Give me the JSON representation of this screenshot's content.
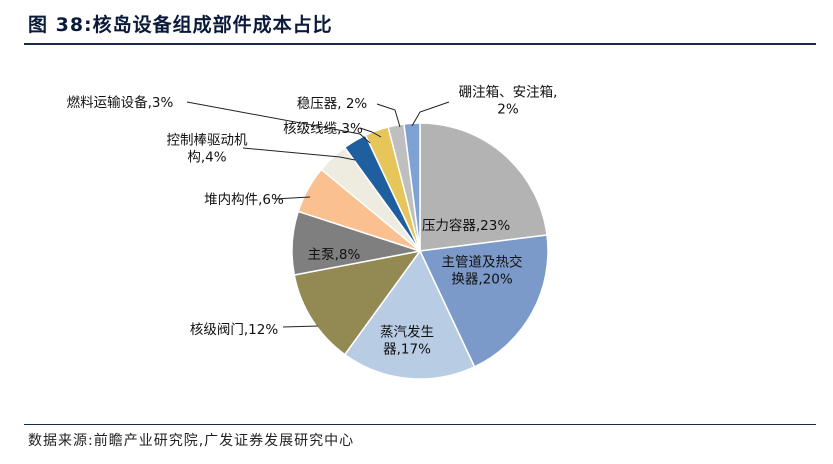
{
  "header": {
    "title": "图 38:核岛设备组成部件成本占比"
  },
  "footer": {
    "source": "数据来源:前瞻产业研究院,广发证券发展研究中心"
  },
  "chart_data": {
    "type": "pie",
    "title": "图 38:核岛设备组成部件成本占比",
    "unit": "%",
    "slices": [
      {
        "name": "压力容器",
        "value": 23,
        "label_lines": [
          "压力容器,23%"
        ],
        "color": "#b3b3b3"
      },
      {
        "name": "主管道及热交换器",
        "value": 20,
        "label_lines": [
          "主管道及热交",
          "换器,20%"
        ],
        "color": "#7b9ac9"
      },
      {
        "name": "蒸汽发生器",
        "value": 17,
        "label_lines": [
          "蒸汽发生",
          "器,17%"
        ],
        "color": "#b8cce4"
      },
      {
        "name": "核级阀门",
        "value": 12,
        "label_lines": [
          "核级阀门,12%"
        ],
        "color": "#938953"
      },
      {
        "name": "主泵",
        "value": 8,
        "label_lines": [
          "主泵,8%"
        ],
        "color": "#7f7f7f"
      },
      {
        "name": "堆内构件",
        "value": 6,
        "label_lines": [
          "堆内构件,6%"
        ],
        "color": "#fac08f"
      },
      {
        "name": "控制棒驱动机构",
        "value": 4,
        "label_lines": [
          "控制棒驱动机",
          "构,4%"
        ],
        "color": "#eeece1"
      },
      {
        "name": "燃料运输设备",
        "value": 3,
        "label_lines": [
          "燃料运输设备,3%"
        ],
        "color": "#1f5fa0"
      },
      {
        "name": "核级线缆",
        "value": 3,
        "label_lines": [
          "核级线缆,3%"
        ],
        "color": "#e6c55a"
      },
      {
        "name": "稳压器",
        "value": 2,
        "label_lines": [
          "稳压器, 2%"
        ],
        "color": "#bfbfbf"
      },
      {
        "name": "硼注箱、安注箱",
        "value": 2,
        "label_lines": [
          "硼注箱、安注箱,",
          "2%"
        ],
        "color": "#7ea2d4"
      }
    ]
  }
}
